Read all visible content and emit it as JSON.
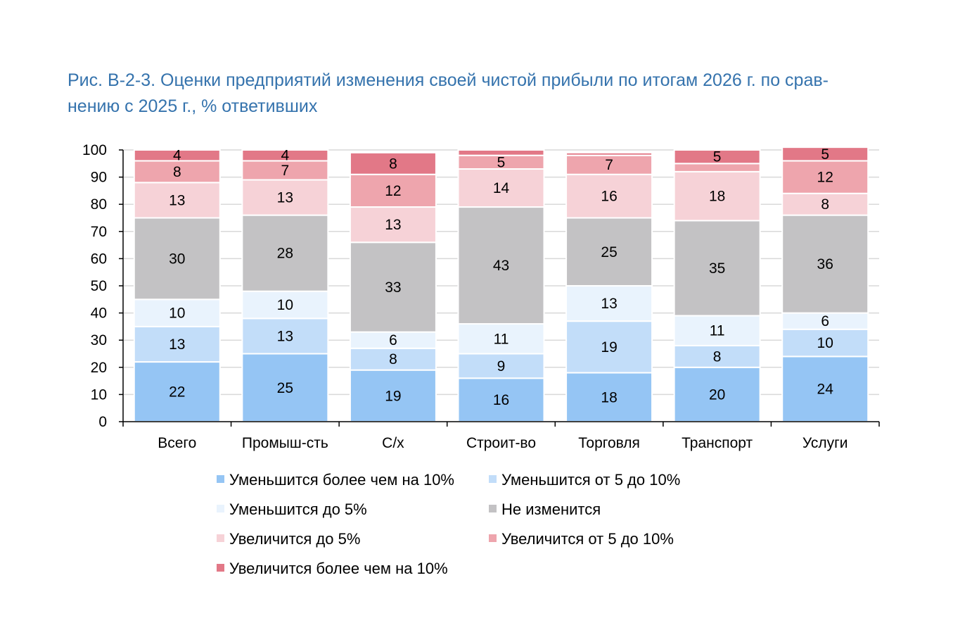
{
  "chart_data": {
    "type": "bar",
    "stacked": true,
    "title": "Рис. В-2-3. Оценки предприятий изменения своей чистой прибыли по итогам 2026 г. по срав-нению с 2025 г., % ответивших",
    "title_lines": [
      "Рис. В-2-3. Оценки предприятий изменения своей чистой прибыли по итогам 2026 г. по срав-",
      "нению с 2025 г., % ответивших"
    ],
    "categories": [
      "Всего",
      "Промыш-сть",
      "С/х",
      "Строит-во",
      "Торговля",
      "Транспорт",
      "Услуги"
    ],
    "ylim": [
      0,
      100
    ],
    "yticks": [
      0,
      10,
      20,
      30,
      40,
      50,
      60,
      70,
      80,
      90,
      100
    ],
    "grid": true,
    "legend_position": "bottom",
    "series": [
      {
        "name": "Уменьшится более чем на 10%",
        "color": "#95c5f4",
        "values": [
          22,
          25,
          19,
          16,
          18,
          20,
          24
        ],
        "labels": [
          "22",
          "25",
          "19",
          "16",
          "18",
          "20",
          "24"
        ]
      },
      {
        "name": "Уменьшится от 5 до 10%",
        "color": "#c2ddf9",
        "values": [
          13,
          13,
          8,
          9,
          19,
          8,
          10
        ],
        "labels": [
          "13",
          "13",
          "8",
          "9",
          "19",
          "8",
          "10"
        ]
      },
      {
        "name": "Уменьшится до 5%",
        "color": "#e9f3fd",
        "values": [
          10,
          10,
          6,
          11,
          13,
          11,
          6
        ],
        "labels": [
          "10",
          "10",
          "6",
          "11",
          "13",
          "11",
          "6"
        ]
      },
      {
        "name": "Не изменится",
        "color": "#c3c2c4",
        "values": [
          30,
          28,
          33,
          43,
          25,
          35,
          36
        ],
        "labels": [
          "30",
          "28",
          "33",
          "43",
          "25",
          "35",
          "36"
        ]
      },
      {
        "name": "Увеличится до 5%",
        "color": "#f6d2d7",
        "values": [
          13,
          13,
          13,
          14,
          16,
          18,
          8
        ],
        "labels": [
          "13",
          "13",
          "13",
          "14",
          "16",
          "18",
          "8"
        ]
      },
      {
        "name": "Увеличится от 5 до 10%",
        "color": "#eea5ad",
        "values": [
          8,
          7,
          12,
          5,
          7,
          3,
          12
        ],
        "labels": [
          "8",
          "7",
          "12",
          "5",
          "7",
          "",
          "12"
        ]
      },
      {
        "name": "Увеличится более чем на 10%",
        "color": "#e27887",
        "values": [
          4,
          4,
          8,
          2,
          1,
          5,
          5
        ],
        "labels": [
          "4",
          "4",
          "8",
          "",
          "",
          "5",
          "5"
        ]
      }
    ]
  }
}
